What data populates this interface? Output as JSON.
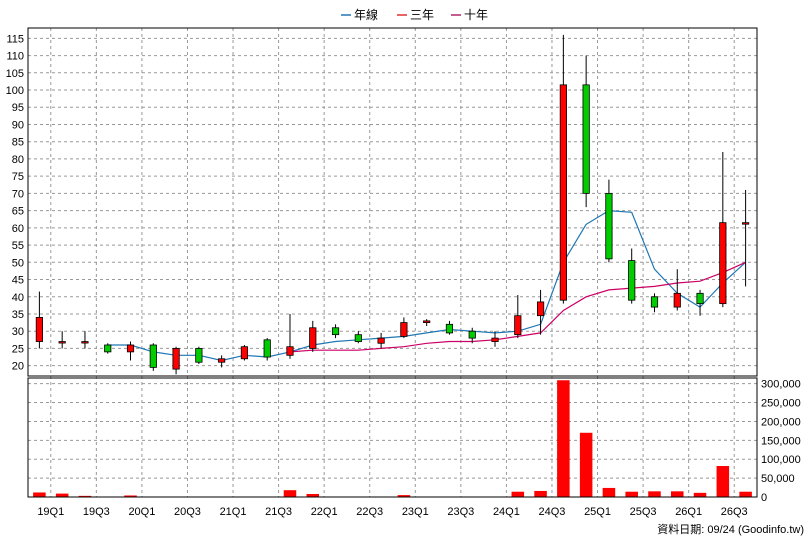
{
  "chart_data": {
    "type": "candlestick",
    "legend": {
      "placement": "top-center",
      "items": [
        {
          "label": "年線",
          "color": "#1f77b4"
        },
        {
          "label": "三年",
          "color": "#e0312b"
        },
        {
          "label": "十年",
          "color": "#b0266e"
        }
      ]
    },
    "x_tick_labels": [
      "19Q1",
      "19Q3",
      "20Q1",
      "20Q3",
      "21Q1",
      "21Q3",
      "22Q1",
      "22Q3",
      "23Q1",
      "23Q3",
      "24Q1",
      "24Q3",
      "25Q1",
      "25Q3",
      "26Q1",
      "26Q3"
    ],
    "price_axis": {
      "ylim": [
        17,
        118
      ],
      "ticks": [
        20,
        25,
        30,
        35,
        40,
        45,
        50,
        55,
        60,
        65,
        70,
        75,
        80,
        85,
        90,
        95,
        100,
        105,
        110,
        115
      ]
    },
    "volume_axis": {
      "ylim": [
        0,
        315000
      ],
      "ticks": [
        0,
        50000,
        100000,
        150000,
        200000,
        250000,
        300000
      ],
      "tick_labels": [
        "0",
        "50,000",
        "100,000",
        "150,000",
        "200,000",
        "250,000",
        "300,000"
      ]
    },
    "colors": {
      "up": "#ff0000",
      "down": "#00cc00",
      "volume": "#ff0000",
      "line_year": "#1f77b4",
      "line_10y": "#cc0066"
    },
    "candles": [
      {
        "x": 0,
        "open": 27,
        "close": 34,
        "high": 41.5,
        "low": 25
      },
      {
        "x": 1,
        "open": 27,
        "close": 27,
        "high": 30,
        "low": 25
      },
      {
        "x": 2,
        "open": 27,
        "close": 27,
        "high": 30,
        "low": 25
      },
      {
        "x": 3,
        "open": 26,
        "close": 24,
        "high": 26.5,
        "low": 23.5
      },
      {
        "x": 4,
        "open": 24,
        "close": 26,
        "high": 27,
        "low": 21.5
      },
      {
        "x": 5,
        "open": 26,
        "close": 19.5,
        "high": 26.5,
        "low": 18.5
      },
      {
        "x": 6,
        "open": 19,
        "close": 25,
        "high": 25.5,
        "low": 17.5
      },
      {
        "x": 7,
        "open": 25,
        "close": 21,
        "high": 25.5,
        "low": 20.5
      },
      {
        "x": 8,
        "open": 21,
        "close": 22,
        "high": 23,
        "low": 19.5
      },
      {
        "x": 9,
        "open": 22,
        "close": 25.5,
        "high": 26,
        "low": 21.5
      },
      {
        "x": 10,
        "open": 27.5,
        "close": 22.5,
        "high": 28,
        "low": 21.5
      },
      {
        "x": 11,
        "open": 23,
        "close": 25.5,
        "high": 35,
        "low": 22
      },
      {
        "x": 12,
        "open": 25,
        "close": 31,
        "high": 33,
        "low": 24
      },
      {
        "x": 13,
        "open": 31,
        "close": 29,
        "high": 32,
        "low": 28
      },
      {
        "x": 14,
        "open": 29,
        "close": 27,
        "high": 30,
        "low": 26.5
      },
      {
        "x": 15,
        "open": 26.5,
        "close": 28,
        "high": 29.5,
        "low": 25
      },
      {
        "x": 16,
        "open": 28.5,
        "close": 32.5,
        "high": 34,
        "low": 28
      },
      {
        "x": 17,
        "open": 32.5,
        "close": 33,
        "high": 33.5,
        "low": 31.5
      },
      {
        "x": 18,
        "open": 32,
        "close": 29.5,
        "high": 33,
        "low": 29
      },
      {
        "x": 19,
        "open": 30,
        "close": 28,
        "high": 31,
        "low": 26.5
      },
      {
        "x": 20,
        "open": 27,
        "close": 28,
        "high": 30,
        "low": 25.5
      },
      {
        "x": 21,
        "open": 29,
        "close": 34.5,
        "high": 40.5,
        "low": 28
      },
      {
        "x": 22,
        "open": 34.5,
        "close": 38.5,
        "high": 42,
        "low": 29
      },
      {
        "x": 23,
        "open": 39,
        "close": 101.5,
        "high": 116,
        "low": 38
      },
      {
        "x": 24,
        "open": 101.5,
        "close": 70,
        "high": 110,
        "low": 66
      },
      {
        "x": 25,
        "open": 70,
        "close": 51,
        "high": 74,
        "low": 50
      },
      {
        "x": 26,
        "open": 50.5,
        "close": 39,
        "high": 54,
        "low": 38
      },
      {
        "x": 27,
        "open": 40,
        "close": 37,
        "high": 41,
        "low": 35.5
      },
      {
        "x": 28,
        "open": 37,
        "close": 41,
        "high": 48,
        "low": 36
      },
      {
        "x": 29,
        "open": 41,
        "close": 38,
        "high": 42,
        "low": 34.5
      },
      {
        "x": 30,
        "open": 38,
        "close": 61.5,
        "high": 82,
        "low": 37
      },
      {
        "x": 31,
        "open": 61.5,
        "close": 61.5,
        "high": 71,
        "low": 43
      }
    ],
    "series": [
      {
        "name": "年線",
        "values": [
          null,
          null,
          null,
          26,
          26,
          24,
          23,
          23,
          21.5,
          23,
          22.5,
          24,
          26,
          27,
          27.5,
          28,
          28.5,
          29.5,
          30.5,
          30,
          29.5,
          30,
          32,
          50,
          61,
          65,
          64.5,
          48,
          41,
          37,
          44,
          50
        ]
      },
      {
        "name": "十年",
        "values": [
          null,
          null,
          null,
          null,
          null,
          null,
          null,
          null,
          null,
          null,
          null,
          24,
          24.5,
          24.5,
          24.5,
          25,
          25.5,
          26.5,
          27,
          27,
          27.5,
          28.5,
          29.5,
          36,
          40,
          42,
          42.5,
          43,
          44,
          44.5,
          47,
          50
        ]
      }
    ],
    "volume": [
      12000,
      9000,
      3000,
      1000,
      4000,
      1000,
      1000,
      1000,
      1000,
      1000,
      1000,
      18000,
      8000,
      1000,
      1000,
      1000,
      5000,
      1000,
      1000,
      1000,
      1000,
      14000,
      16000,
      309000,
      170000,
      24000,
      14000,
      15000,
      15000,
      11000,
      82000,
      14000
    ],
    "footer": "資料日期: 09/24  (Goodinfo.tw)"
  }
}
